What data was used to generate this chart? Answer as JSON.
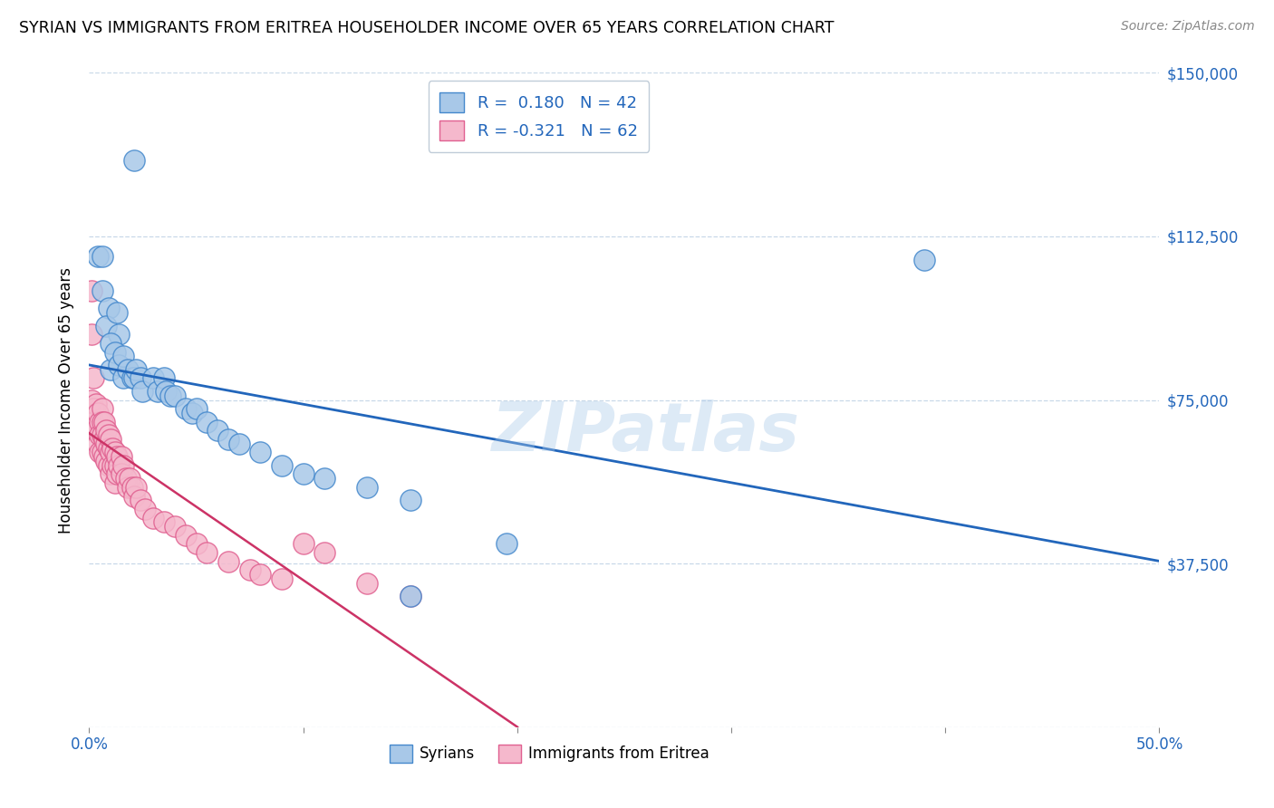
{
  "title": "SYRIAN VS IMMIGRANTS FROM ERITREA HOUSEHOLDER INCOME OVER 65 YEARS CORRELATION CHART",
  "source": "Source: ZipAtlas.com",
  "ylabel": "Householder Income Over 65 years",
  "xlim": [
    0,
    0.5
  ],
  "ylim": [
    0,
    150000
  ],
  "xticks": [
    0.0,
    0.1,
    0.2,
    0.3,
    0.4,
    0.5
  ],
  "yticks": [
    0,
    37500,
    75000,
    112500,
    150000
  ],
  "ytick_labels": [
    "",
    "$37,500",
    "$75,000",
    "$112,500",
    "$150,000"
  ],
  "xtick_labels": [
    "0.0%",
    "",
    "",
    "",
    "",
    "50.0%"
  ],
  "legend_r1": "R =  0.180   N = 42",
  "legend_r2": "R = -0.321   N = 62",
  "legend_label1": "Syrians",
  "legend_label2": "Immigrants from Eritrea",
  "color_syrians": "#a8c8e8",
  "color_eritrea": "#f5b8cc",
  "edge_syrians": "#4488cc",
  "edge_eritrea": "#e06090",
  "line_color_syrians": "#2266bb",
  "line_color_eritrea": "#cc3366",
  "watermark": "ZIPatlas",
  "background_color": "#ffffff",
  "grid_color": "#c8d8e8",
  "syrians_x": [
    0.021,
    0.004,
    0.006,
    0.006,
    0.009,
    0.008,
    0.013,
    0.014,
    0.01,
    0.01,
    0.012,
    0.014,
    0.016,
    0.016,
    0.018,
    0.02,
    0.021,
    0.022,
    0.024,
    0.025,
    0.03,
    0.032,
    0.035,
    0.036,
    0.038,
    0.04,
    0.045,
    0.048,
    0.05,
    0.055,
    0.06,
    0.065,
    0.07,
    0.08,
    0.09,
    0.1,
    0.11,
    0.13,
    0.15,
    0.195,
    0.39,
    0.15
  ],
  "syrians_y": [
    130000,
    108000,
    108000,
    100000,
    96000,
    92000,
    95000,
    90000,
    88000,
    82000,
    86000,
    83000,
    85000,
    80000,
    82000,
    80000,
    80000,
    82000,
    80000,
    77000,
    80000,
    77000,
    80000,
    77000,
    76000,
    76000,
    73000,
    72000,
    73000,
    70000,
    68000,
    66000,
    65000,
    63000,
    60000,
    58000,
    57000,
    55000,
    52000,
    42000,
    107000,
    30000
  ],
  "eritrea_x": [
    0.001,
    0.001,
    0.002,
    0.002,
    0.002,
    0.003,
    0.003,
    0.004,
    0.004,
    0.005,
    0.005,
    0.005,
    0.006,
    0.006,
    0.006,
    0.006,
    0.007,
    0.007,
    0.007,
    0.008,
    0.008,
    0.008,
    0.009,
    0.009,
    0.009,
    0.01,
    0.01,
    0.01,
    0.011,
    0.011,
    0.012,
    0.012,
    0.012,
    0.013,
    0.013,
    0.014,
    0.015,
    0.015,
    0.016,
    0.017,
    0.018,
    0.019,
    0.02,
    0.021,
    0.022,
    0.024,
    0.026,
    0.03,
    0.035,
    0.04,
    0.045,
    0.05,
    0.055,
    0.065,
    0.075,
    0.08,
    0.09,
    0.1,
    0.11,
    0.13,
    0.15,
    0.001
  ],
  "eritrea_y": [
    100000,
    75000,
    80000,
    73000,
    70000,
    74000,
    68000,
    72000,
    65000,
    70000,
    67000,
    63000,
    73000,
    70000,
    67000,
    63000,
    70000,
    66000,
    62000,
    68000,
    65000,
    61000,
    67000,
    64000,
    60000,
    66000,
    63000,
    58000,
    64000,
    60000,
    63000,
    60000,
    56000,
    62000,
    58000,
    60000,
    62000,
    58000,
    60000,
    57000,
    55000,
    57000,
    55000,
    53000,
    55000,
    52000,
    50000,
    48000,
    47000,
    46000,
    44000,
    42000,
    40000,
    38000,
    36000,
    35000,
    34000,
    42000,
    40000,
    33000,
    30000,
    90000
  ]
}
